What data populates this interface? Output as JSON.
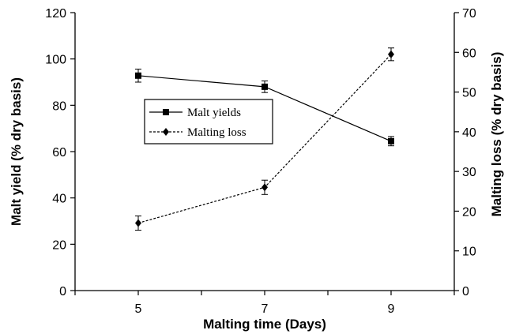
{
  "chart_data": {
    "type": "line",
    "x": [
      5,
      7,
      9
    ],
    "xlabel": "Malting time (Days)",
    "ylabel_left": "Malt yield (% dry basis)",
    "ylabel_right": "Malting loss (% dry basis)",
    "xlim": [
      4,
      10
    ],
    "ylim_left": [
      0,
      120
    ],
    "ylim_right": [
      0,
      70
    ],
    "xticks": [
      5,
      7,
      9
    ],
    "yticks_left": [
      0,
      20,
      40,
      60,
      80,
      100,
      120
    ],
    "yticks_right": [
      0,
      10,
      20,
      30,
      40,
      50,
      60,
      70
    ],
    "grid": false,
    "legend_position": "center-left",
    "series": [
      {
        "name": "Malt yields",
        "axis": "left",
        "values": [
          92.8,
          88.0,
          64.5
        ],
        "errors": [
          2.8,
          2.5,
          2.0
        ],
        "line_style": "solid",
        "marker": "square",
        "color": "#000000"
      },
      {
        "name": "Malting loss",
        "axis": "right",
        "values": [
          17.0,
          26.0,
          59.5
        ],
        "errors": [
          1.8,
          1.8,
          1.6
        ],
        "line_style": "dotted",
        "marker": "diamond",
        "color": "#000000"
      }
    ]
  }
}
